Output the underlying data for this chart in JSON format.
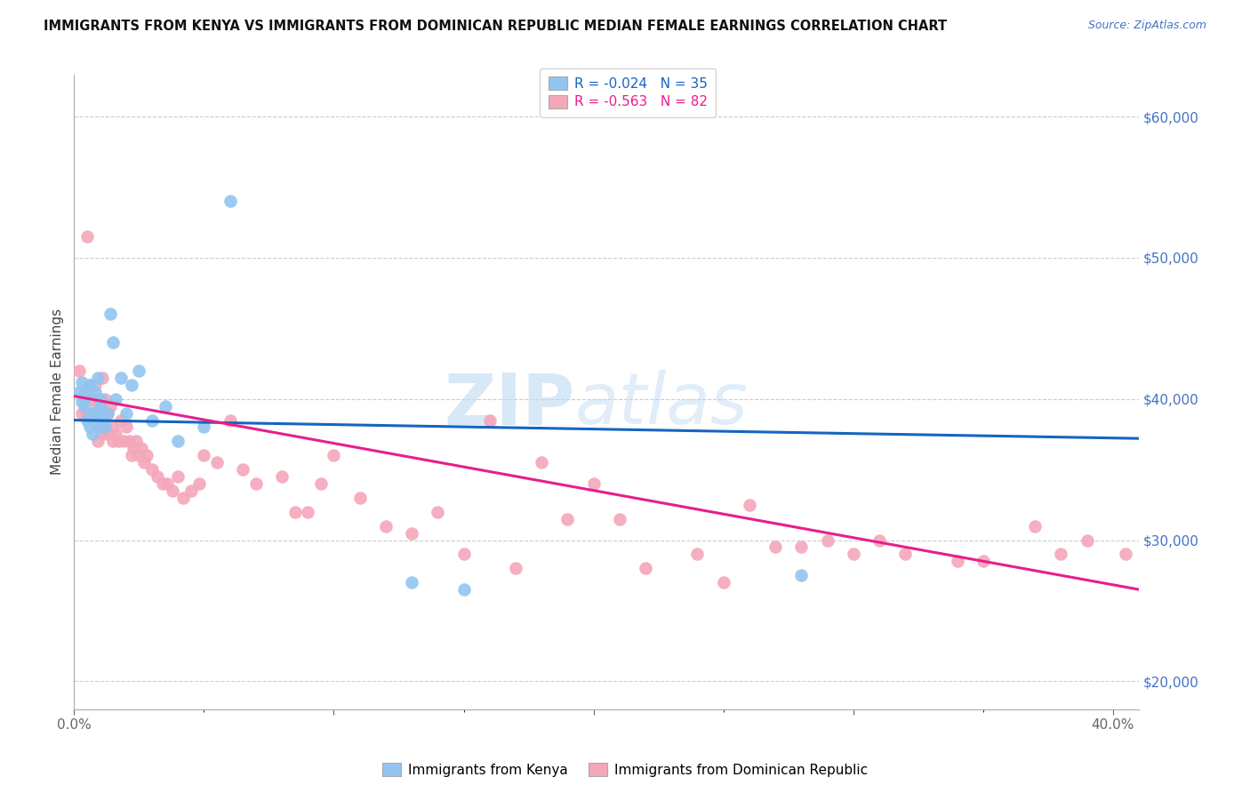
{
  "title": "IMMIGRANTS FROM KENYA VS IMMIGRANTS FROM DOMINICAN REPUBLIC MEDIAN FEMALE EARNINGS CORRELATION CHART",
  "source": "Source: ZipAtlas.com",
  "ylabel": "Median Female Earnings",
  "right_yticks": [
    20000,
    30000,
    40000,
    50000,
    60000
  ],
  "right_yticklabels": [
    "$20,000",
    "$30,000",
    "$40,000",
    "$50,000",
    "$60,000"
  ],
  "legend_label1": "Immigrants from Kenya",
  "legend_label2": "Immigrants from Dominican Republic",
  "color_kenya": "#92C5F0",
  "color_dr": "#F4A7B9",
  "line_color_kenya": "#1565C0",
  "line_color_dr": "#E91E8C",
  "watermark_zip": "ZIP",
  "watermark_atlas": "atlas",
  "xlim": [
    0.0,
    0.41
  ],
  "ylim": [
    18000,
    63000
  ],
  "kenya_R": -0.024,
  "kenya_N": 35,
  "dr_R": -0.563,
  "dr_N": 82,
  "kenya_x": [
    0.002,
    0.003,
    0.003,
    0.004,
    0.004,
    0.005,
    0.005,
    0.006,
    0.006,
    0.007,
    0.007,
    0.008,
    0.008,
    0.009,
    0.009,
    0.01,
    0.01,
    0.011,
    0.012,
    0.013,
    0.014,
    0.015,
    0.016,
    0.018,
    0.02,
    0.022,
    0.025,
    0.03,
    0.035,
    0.04,
    0.05,
    0.06,
    0.13,
    0.15,
    0.28
  ],
  "kenya_y": [
    40500,
    39800,
    41200,
    40000,
    39500,
    40800,
    38500,
    41000,
    38000,
    39000,
    37500,
    40500,
    39000,
    41500,
    38000,
    40000,
    39500,
    38500,
    38000,
    39000,
    46000,
    44000,
    40000,
    41500,
    39000,
    41000,
    42000,
    38500,
    39500,
    37000,
    38000,
    54000,
    27000,
    26500,
    27500
  ],
  "dr_x": [
    0.002,
    0.003,
    0.004,
    0.005,
    0.005,
    0.006,
    0.007,
    0.007,
    0.008,
    0.008,
    0.009,
    0.009,
    0.01,
    0.01,
    0.011,
    0.011,
    0.012,
    0.012,
    0.013,
    0.013,
    0.014,
    0.015,
    0.015,
    0.016,
    0.017,
    0.018,
    0.019,
    0.02,
    0.021,
    0.022,
    0.023,
    0.024,
    0.025,
    0.026,
    0.027,
    0.028,
    0.03,
    0.032,
    0.034,
    0.036,
    0.038,
    0.04,
    0.042,
    0.045,
    0.048,
    0.05,
    0.055,
    0.06,
    0.065,
    0.07,
    0.08,
    0.085,
    0.09,
    0.095,
    0.1,
    0.11,
    0.12,
    0.13,
    0.14,
    0.15,
    0.16,
    0.17,
    0.18,
    0.19,
    0.2,
    0.21,
    0.22,
    0.24,
    0.25,
    0.26,
    0.27,
    0.28,
    0.29,
    0.3,
    0.31,
    0.32,
    0.34,
    0.35,
    0.37,
    0.38,
    0.39,
    0.405
  ],
  "dr_y": [
    42000,
    39000,
    40500,
    51500,
    39000,
    41000,
    40000,
    38500,
    38500,
    41000,
    39500,
    37000,
    39000,
    38000,
    41500,
    37500,
    40000,
    38000,
    39000,
    37500,
    39500,
    38000,
    37000,
    37500,
    37000,
    38500,
    37000,
    38000,
    37000,
    36000,
    36500,
    37000,
    36000,
    36500,
    35500,
    36000,
    35000,
    34500,
    34000,
    34000,
    33500,
    34500,
    33000,
    33500,
    34000,
    36000,
    35500,
    38500,
    35000,
    34000,
    34500,
    32000,
    32000,
    34000,
    36000,
    33000,
    31000,
    30500,
    32000,
    29000,
    38500,
    28000,
    35500,
    31500,
    34000,
    31500,
    28000,
    29000,
    27000,
    32500,
    29500,
    29500,
    30000,
    29000,
    30000,
    29000,
    28500,
    28500,
    31000,
    29000,
    30000,
    29000
  ]
}
